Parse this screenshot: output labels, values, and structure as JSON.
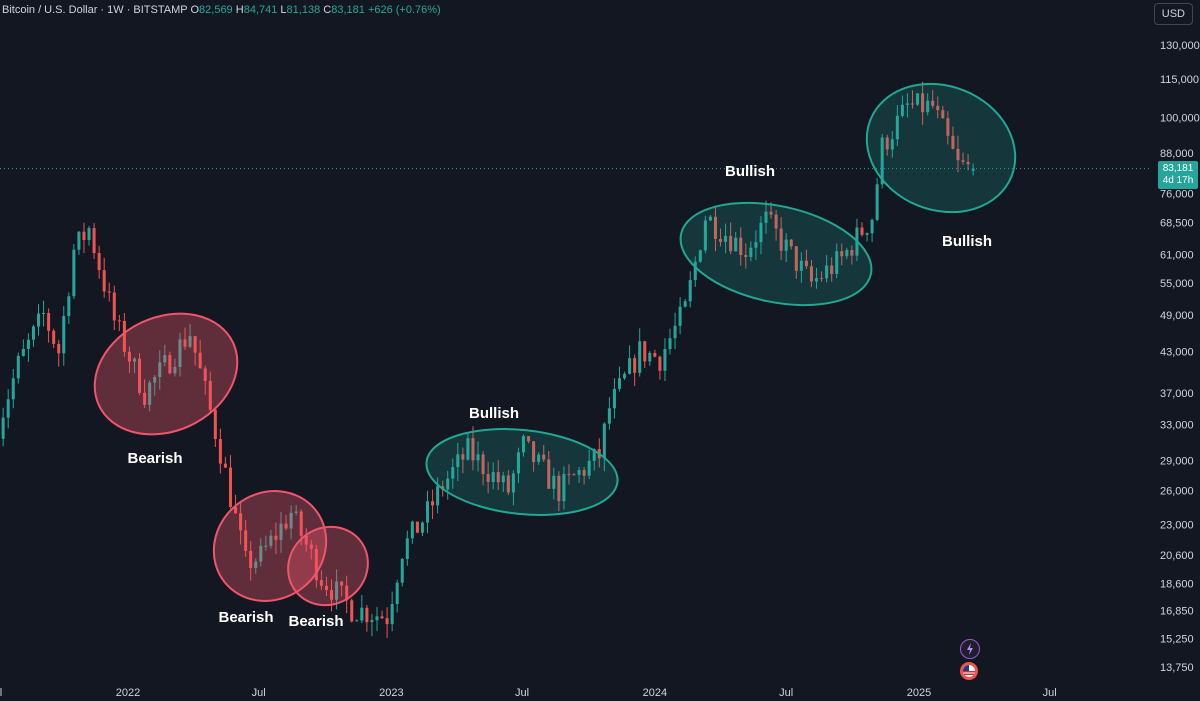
{
  "header": {
    "symbol": "Bitcoin / U.S. Dollar · 1W · BITSTAMP",
    "o_label": "O",
    "o_value": "82,569",
    "h_label": "H",
    "h_value": "84,741",
    "l_label": "L",
    "l_value": "81,138",
    "c_label": "C",
    "c_value": "83,181",
    "change": "+626 (+0.76%)",
    "currency": "USD"
  },
  "price_badge": {
    "price": "83,181",
    "countdown": "4d 17h"
  },
  "colors": {
    "up": "#26a69a",
    "down": "#ef5350",
    "bg": "#131722",
    "bear_zone": "#f0556b",
    "bull_zone": "#20a894"
  },
  "icons": [
    "lightning-icon",
    "us-flag-icon"
  ],
  "chart_data": {
    "type": "candlestick",
    "symbol": "BTCUSD",
    "interval": "1W",
    "scale": "log",
    "ylim": [
      12800,
      145000
    ],
    "y_ticks": [
      130000,
      115000,
      100000,
      88000,
      76000,
      68500,
      61000,
      55000,
      49000,
      43000,
      37000,
      33000,
      29000,
      26000,
      23000,
      20600,
      18600,
      16850,
      15250,
      13750
    ],
    "y_tick_labels": [
      "130,000",
      "115,000",
      "100,000",
      "88,000",
      "76,000",
      "68,500",
      "61,000",
      "55,000",
      "49,000",
      "43,000",
      "37,000",
      "33,000",
      "29,000",
      "26,000",
      "23,000",
      "20,600",
      "18,600",
      "16,850",
      "15,250",
      "13,750"
    ],
    "x_tick_labels": [
      "Jul",
      "2022",
      "Jul",
      "2023",
      "Jul",
      "2024",
      "Jul",
      "2025",
      "Jul"
    ],
    "last_price": 83181,
    "price_path": [
      [
        "2021-07-05",
        33000
      ],
      [
        "2021-08-02",
        41000
      ],
      [
        "2021-09-06",
        49000
      ],
      [
        "2021-09-27",
        43000
      ],
      [
        "2021-10-18",
        62000
      ],
      [
        "2021-11-08",
        67000
      ],
      [
        "2021-12-13",
        48000
      ],
      [
        "2022-01-24",
        37000
      ],
      [
        "2022-03-28",
        46000
      ],
      [
        "2022-05-09",
        30000
      ],
      [
        "2022-06-13",
        20000
      ],
      [
        "2022-07-04",
        20500
      ],
      [
        "2022-08-15",
        24000
      ],
      [
        "2022-09-26",
        19000
      ],
      [
        "2022-11-07",
        17000
      ],
      [
        "2022-12-26",
        16500
      ],
      [
        "2023-01-16",
        21000
      ],
      [
        "2023-02-20",
        24000
      ],
      [
        "2023-03-13",
        26500
      ],
      [
        "2023-04-17",
        30000
      ],
      [
        "2023-06-12",
        26000
      ],
      [
        "2023-07-03",
        30500
      ],
      [
        "2023-08-21",
        26000
      ],
      [
        "2023-10-16",
        29500
      ],
      [
        "2023-10-30",
        35000
      ],
      [
        "2023-12-11",
        43000
      ],
      [
        "2024-01-08",
        42000
      ],
      [
        "2024-02-12",
        50000
      ],
      [
        "2024-03-11",
        70000
      ],
      [
        "2024-05-06",
        62000
      ],
      [
        "2024-06-03",
        69000
      ],
      [
        "2024-08-05",
        55000
      ],
      [
        "2024-09-16",
        60000
      ],
      [
        "2024-10-28",
        70000
      ],
      [
        "2024-11-11",
        90000
      ],
      [
        "2024-12-16",
        104000
      ],
      [
        "2025-01-20",
        104000
      ],
      [
        "2025-02-24",
        84000
      ],
      [
        "2025-03-17",
        83181
      ]
    ],
    "annotations": [
      {
        "label": "Bearish",
        "kind": "bearish",
        "period": [
          "2021-12",
          "2022-05"
        ]
      },
      {
        "label": "Bearish",
        "kind": "bearish",
        "period": [
          "2022-06",
          "2022-09"
        ]
      },
      {
        "label": "Bearish",
        "kind": "bearish",
        "period": [
          "2022-08",
          "2022-11"
        ]
      },
      {
        "label": "Bullish",
        "kind": "bullish",
        "period": [
          "2023-03",
          "2023-10"
        ]
      },
      {
        "label": "Bullish",
        "kind": "bullish",
        "period": [
          "2024-03",
          "2024-10"
        ]
      },
      {
        "label": "Bullish",
        "kind": "bullish",
        "period": [
          "2024-11",
          "2025-03"
        ]
      }
    ]
  }
}
